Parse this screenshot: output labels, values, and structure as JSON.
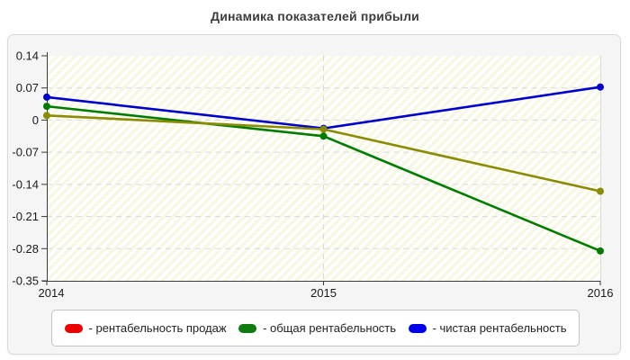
{
  "title": "Динамика показателей прибыли",
  "chart_data": {
    "type": "line",
    "title": "Динамика показателей прибыли",
    "categories": [
      "2014",
      "2015",
      "2016"
    ],
    "xlabel": "",
    "ylabel": "",
    "y_ticks": [
      "0.14",
      "0.07",
      "0",
      "-0.07",
      "-0.14",
      "-0.21",
      "-0.28",
      "-0.35"
    ],
    "ylim": [
      -0.35,
      0.14
    ],
    "grid": "dashed",
    "plot_background": "pale-yellow diagonal hatch",
    "legend_position": "bottom",
    "series": [
      {
        "name": "рентабельность продаж",
        "legend_label": "- рентабельность продаж",
        "legend_color": "#ee0000",
        "line_color": "#8b8b00",
        "values": [
          0.01,
          -0.02,
          -0.155
        ]
      },
      {
        "name": "общая рентабельность",
        "legend_label": "- общая рентабельность",
        "legend_color": "#0e7c0e",
        "line_color": "#007d00",
        "values": [
          0.03,
          -0.035,
          -0.285
        ]
      },
      {
        "name": "чистая рентабельность",
        "legend_label": "- чистая рентабельность",
        "legend_color": "#0000ee",
        "line_color": "#0000cc",
        "values": [
          0.05,
          -0.018,
          0.072
        ]
      }
    ]
  },
  "colors": {
    "panel_bg": "#f5f5f5",
    "panel_border": "#d8d8d8",
    "plot_hatch_base": "#f7f7e4",
    "plot_hatch_stripe": "#ffffff",
    "gridline": "#d9d9d9",
    "axis": "#3a3a3a",
    "tick_label": "#1a1a1a",
    "legend_border": "#c2c2c2",
    "legend_bg": "#ffffff"
  }
}
